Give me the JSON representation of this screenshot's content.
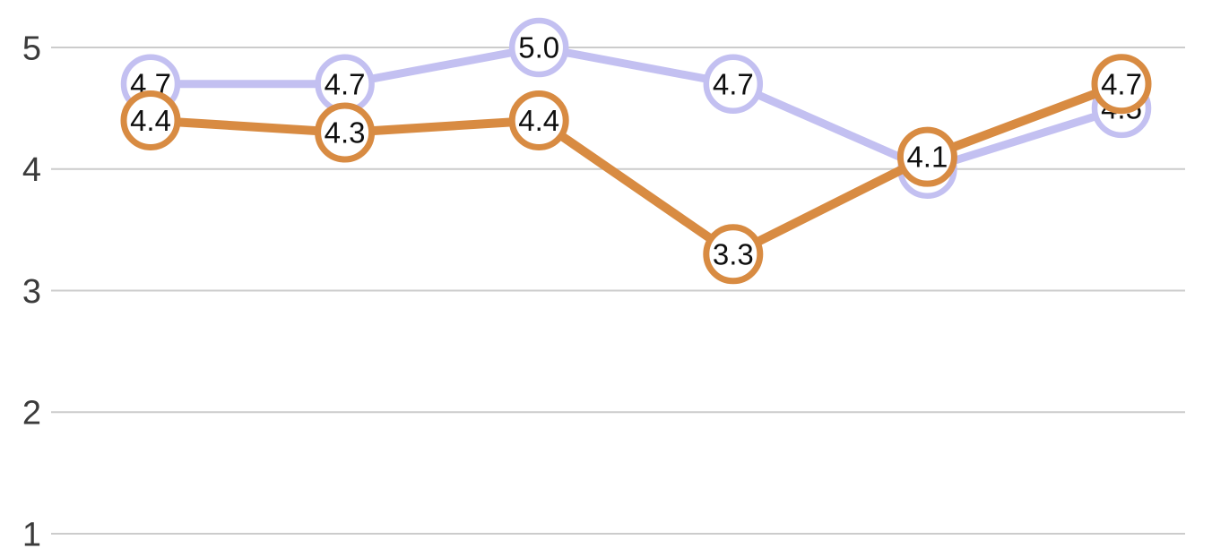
{
  "chart_data": {
    "type": "line",
    "title": "",
    "num_points": 6,
    "x_labels": [
      "",
      "",
      "",
      "",
      "",
      ""
    ],
    "y_ticks": [
      5,
      4,
      3,
      2,
      1
    ],
    "ylim": [
      1,
      5
    ],
    "grid": true,
    "legend_position": "none",
    "series": [
      {
        "name": "series-1-purple",
        "color": "#c3c0f1",
        "line_width": 9,
        "marker_stroke_width": 6.5,
        "values": [
          4.7,
          4.7,
          5.0,
          4.7,
          4.0,
          4.5
        ],
        "point_labels": [
          "4.7",
          "4.7",
          "5.0",
          "4.7",
          "4.0",
          "4.5"
        ]
      },
      {
        "name": "series-2-orange",
        "color": "#d88b42",
        "line_width": 10,
        "marker_stroke_width": 7,
        "values": [
          4.4,
          4.3,
          4.4,
          3.3,
          4.1,
          4.7
        ],
        "point_labels": [
          "4.4",
          "4.3",
          "4.4",
          "3.3",
          "4.1",
          "4.7"
        ]
      }
    ],
    "point_marker": {
      "shape": "circle",
      "fill": "#ffffff"
    },
    "colors": {
      "grid": "#cccccc",
      "axis_labels": "#3b3b3b",
      "point_labels": "#0f0f0f",
      "background": "#ffffff"
    }
  }
}
